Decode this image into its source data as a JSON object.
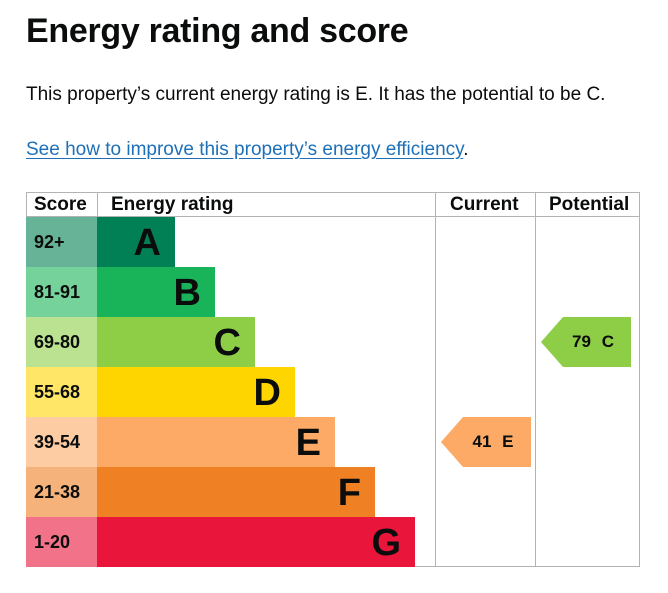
{
  "title": "Energy rating and score",
  "summary": "This property’s current energy rating is E. It has the potential to be C.",
  "link": {
    "text": "See how to improve this property’s energy efficiency",
    "suffix": "."
  },
  "table": {
    "headers": {
      "score": "Score",
      "rating": "Energy rating",
      "current": "Current",
      "potential": "Potential"
    },
    "bands": [
      {
        "range": "92+",
        "letter": "A",
        "color": "#008054",
        "score_bg": "#66b398"
      },
      {
        "range": "81-91",
        "letter": "B",
        "color": "#19b459",
        "score_bg": "#75d29b"
      },
      {
        "range": "69-80",
        "letter": "C",
        "color": "#8dce46",
        "score_bg": "#bbe290"
      },
      {
        "range": "55-68",
        "letter": "D",
        "color": "#ffd500",
        "score_bg": "#ffe666"
      },
      {
        "range": "39-54",
        "letter": "E",
        "color": "#fcaa65",
        "score_bg": "#fdcca3"
      },
      {
        "range": "21-38",
        "letter": "F",
        "color": "#ef8023",
        "score_bg": "#f5b37b"
      },
      {
        "range": "1-20",
        "letter": "G",
        "color": "#e9153b",
        "score_bg": "#f27389"
      }
    ],
    "current": {
      "score": "41",
      "letter": "E",
      "color": "#fcaa65"
    },
    "potential": {
      "score": "79",
      "letter": "C",
      "color": "#8dce46"
    }
  }
}
